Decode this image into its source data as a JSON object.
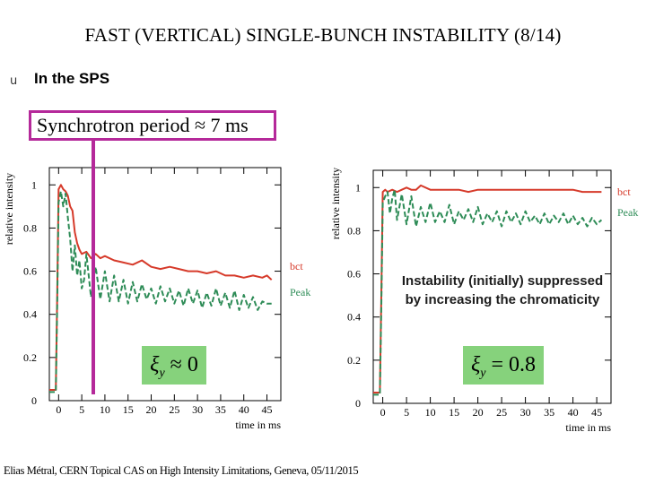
{
  "slide": {
    "title": "FAST (VERTICAL) SINGLE-BUNCH INSTABILITY (8/14)",
    "bullet_glyph": "u",
    "subtitle": "In the SPS",
    "synchrotron_label": "Synchrotron period ≈ 7 ms",
    "note": "Instability (initially) suppressed by increasing the chromaticity",
    "footer": "Elias Métral, CERN Topical CAS on High Intensity Limitations, Geneva, 05/11/2015"
  },
  "colors": {
    "bct": "#d63a2a",
    "peak": "#2e8c57",
    "highlight": "#b5299a",
    "xi_box": "#86d27c"
  },
  "chart_data": [
    {
      "type": "line",
      "name": "left-plot",
      "ylabel": "relative intensity",
      "xlabel": "time in ms",
      "xlim": [
        -2,
        48
      ],
      "ylim": [
        0,
        1.08
      ],
      "xticks": [
        0,
        5,
        10,
        15,
        20,
        25,
        30,
        35,
        40,
        45
      ],
      "xtick_labels": [
        "0",
        "5",
        "10",
        "15",
        "20",
        "25",
        "30",
        "35",
        "40",
        "45"
      ],
      "yticks": [
        0,
        0.2,
        0.4,
        0.6,
        0.8,
        1
      ],
      "ytick_labels": [
        "0",
        "0.2",
        "0.4",
        "0.6",
        "0.8",
        "1"
      ],
      "chromaticity": {
        "symbol": "ξ",
        "subscript": "y",
        "relation": "≈",
        "value": "0"
      },
      "series": [
        {
          "name": "bct",
          "legend": "bct",
          "color": "#d63a2a",
          "style": "solid",
          "x": [
            -2,
            -0.6,
            -0.3,
            0,
            0.5,
            1,
            1.5,
            2,
            2.5,
            3,
            3.5,
            4,
            4.5,
            5,
            6,
            7,
            8,
            9,
            10,
            12,
            14,
            16,
            18,
            20,
            22,
            24,
            26,
            28,
            30,
            32,
            34,
            36,
            38,
            40,
            42,
            44,
            45,
            46
          ],
          "y": [
            0.05,
            0.05,
            0.5,
            0.98,
            1.0,
            0.98,
            0.97,
            0.95,
            0.9,
            0.88,
            0.78,
            0.73,
            0.7,
            0.68,
            0.69,
            0.66,
            0.68,
            0.66,
            0.67,
            0.65,
            0.64,
            0.63,
            0.65,
            0.62,
            0.61,
            0.62,
            0.61,
            0.6,
            0.6,
            0.59,
            0.6,
            0.58,
            0.58,
            0.57,
            0.58,
            0.57,
            0.58,
            0.56
          ]
        },
        {
          "name": "Peak",
          "legend": "Peak",
          "color": "#2e8c57",
          "style": "dashed",
          "x": [
            -2,
            -0.6,
            -0.3,
            0,
            0.5,
            1,
            1.5,
            2,
            2.5,
            3,
            3.5,
            4,
            4.5,
            5,
            5.5,
            6,
            7,
            8,
            9,
            10,
            11,
            12,
            13,
            14,
            15,
            16,
            17,
            18,
            19,
            20,
            21,
            22,
            23,
            24,
            25,
            26,
            27,
            28,
            29,
            30,
            31,
            32,
            33,
            34,
            35,
            36,
            37,
            38,
            39,
            40,
            41,
            42,
            43,
            44,
            45,
            46
          ],
          "y": [
            0.04,
            0.04,
            0.45,
            0.92,
            0.97,
            0.9,
            0.96,
            0.85,
            0.75,
            0.6,
            0.72,
            0.58,
            0.65,
            0.52,
            0.56,
            0.68,
            0.48,
            0.62,
            0.47,
            0.6,
            0.46,
            0.58,
            0.46,
            0.56,
            0.45,
            0.55,
            0.46,
            0.54,
            0.47,
            0.52,
            0.45,
            0.53,
            0.46,
            0.52,
            0.45,
            0.51,
            0.44,
            0.52,
            0.45,
            0.51,
            0.43,
            0.5,
            0.44,
            0.52,
            0.44,
            0.5,
            0.43,
            0.51,
            0.42,
            0.49,
            0.43,
            0.48,
            0.42,
            0.46,
            0.45,
            0.45
          ]
        }
      ]
    },
    {
      "type": "line",
      "name": "right-plot",
      "ylabel": "relative intensity",
      "xlabel": "time in ms",
      "xlim": [
        -2,
        48
      ],
      "ylim": [
        0,
        1.08
      ],
      "xticks": [
        0,
        5,
        10,
        15,
        20,
        25,
        30,
        35,
        40,
        45
      ],
      "xtick_labels": [
        "0",
        "5",
        "10",
        "15",
        "20",
        "25",
        "30",
        "35",
        "40",
        "45"
      ],
      "yticks": [
        0,
        0.2,
        0.4,
        0.6,
        0.8,
        1
      ],
      "ytick_labels": [
        "0",
        "0.2",
        "0.4",
        "0.6",
        "0.8",
        "1"
      ],
      "chromaticity": {
        "symbol": "ξ",
        "subscript": "y",
        "relation": "=",
        "value": "0.8"
      },
      "series": [
        {
          "name": "bct",
          "legend": "bct",
          "color": "#d63a2a",
          "style": "solid",
          "x": [
            -2,
            -0.6,
            -0.3,
            0,
            0.5,
            1,
            2,
            3,
            4,
            5,
            6,
            7,
            8,
            10,
            12,
            14,
            16,
            18,
            20,
            22,
            24,
            26,
            28,
            30,
            32,
            34,
            36,
            38,
            40,
            42,
            44,
            46
          ],
          "y": [
            0.05,
            0.05,
            0.5,
            0.98,
            0.99,
            0.98,
            0.99,
            0.98,
            0.99,
            1.0,
            0.99,
            0.99,
            1.01,
            0.99,
            0.99,
            0.99,
            0.99,
            0.98,
            0.99,
            0.99,
            0.99,
            0.99,
            0.99,
            0.99,
            0.99,
            0.99,
            0.99,
            0.99,
            0.99,
            0.98,
            0.98,
            0.98
          ]
        },
        {
          "name": "Peak",
          "legend": "Peak",
          "color": "#2e8c57",
          "style": "dashed",
          "x": [
            -2,
            -0.6,
            -0.3,
            0,
            0.5,
            1,
            1.5,
            2,
            2.5,
            3,
            4,
            5,
            6,
            7,
            8,
            9,
            10,
            11,
            12,
            13,
            14,
            15,
            16,
            17,
            18,
            19,
            20,
            21,
            22,
            23,
            24,
            25,
            26,
            27,
            28,
            29,
            30,
            31,
            32,
            33,
            34,
            35,
            36,
            37,
            38,
            39,
            40,
            41,
            42,
            43,
            44,
            45,
            46
          ],
          "y": [
            0.04,
            0.04,
            0.45,
            0.93,
            0.96,
            0.98,
            0.88,
            0.95,
            0.99,
            0.85,
            0.97,
            0.83,
            0.96,
            0.82,
            0.91,
            0.84,
            0.93,
            0.84,
            0.89,
            0.84,
            0.92,
            0.83,
            0.89,
            0.85,
            0.9,
            0.84,
            0.91,
            0.83,
            0.88,
            0.84,
            0.89,
            0.82,
            0.89,
            0.84,
            0.88,
            0.83,
            0.89,
            0.84,
            0.87,
            0.83,
            0.88,
            0.83,
            0.87,
            0.84,
            0.88,
            0.83,
            0.87,
            0.83,
            0.86,
            0.82,
            0.86,
            0.83,
            0.85
          ]
        }
      ]
    }
  ]
}
